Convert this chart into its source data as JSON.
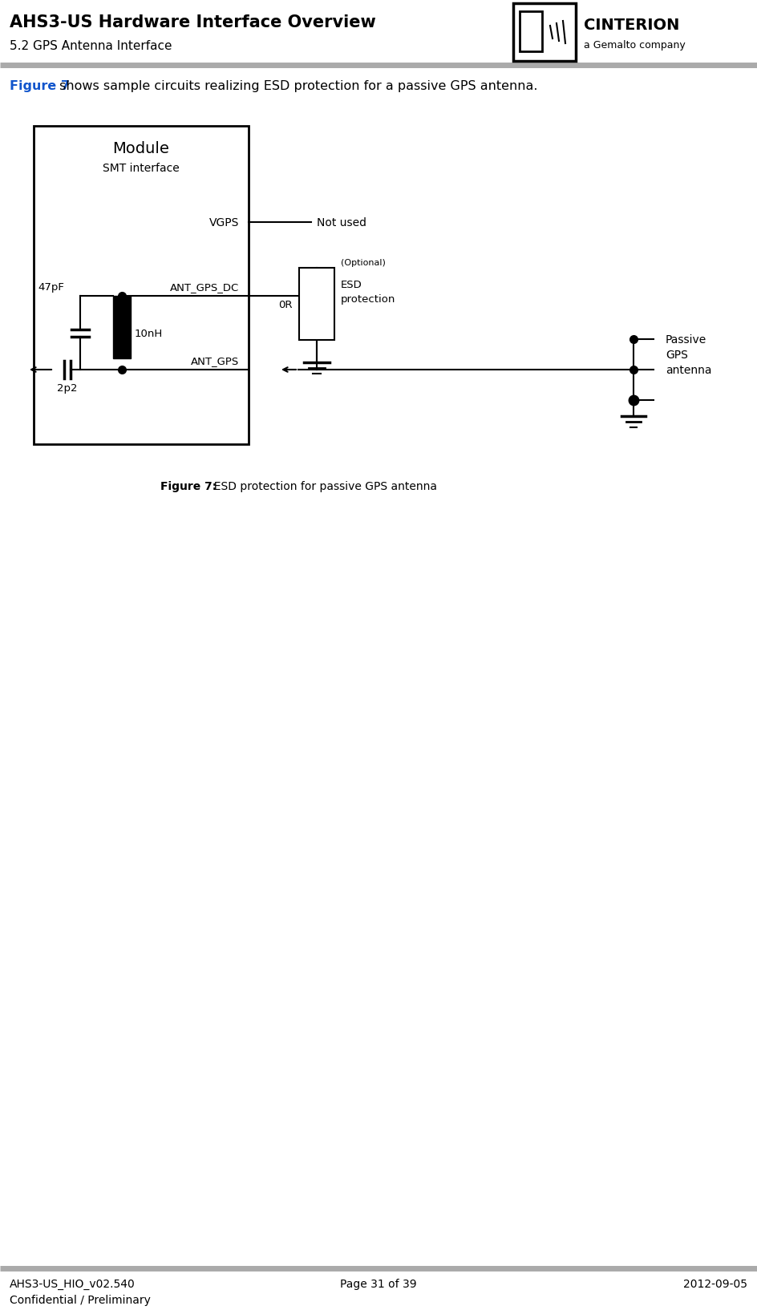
{
  "title": "AHS3-US Hardware Interface Overview",
  "subtitle": "5.2 GPS Antenna Interface",
  "footer_left1": "AHS3-US_HIO_v02.540",
  "footer_left2": "Confidential / Preliminary",
  "footer_center": "Page 31 of 39",
  "footer_right": "2012-09-05",
  "intro_fig_ref": "Figure 7",
  "intro_rest": " shows sample circuits realizing ESD protection for a passive GPS antenna.",
  "fig_ref_color": "#1155cc",
  "background_color": "#ffffff",
  "header_sep_color": "#cccccc",
  "caption_bold": "Figure 7:",
  "caption_rest": "  ESD protection for passive GPS antenna",
  "module_label": "Module",
  "smt_label": "SMT interface",
  "vgps_label": "VGPS",
  "not_used_label": "Not used",
  "ant_dc_label": "ANT_GPS_DC",
  "ant_gps_label": "ANT_GPS",
  "cap1_label": "47pF",
  "ind_label": "10nH",
  "cap2_label": "2p2",
  "esd_opt_label": "(Optional)",
  "esd_label1": "ESD",
  "esd_label2": "protection",
  "esd_0r_label": "0R",
  "passive_label": "Passive\nGPS\nantenna",
  "logo_text1": "CINTERION",
  "logo_text2": "a Gemalto company"
}
